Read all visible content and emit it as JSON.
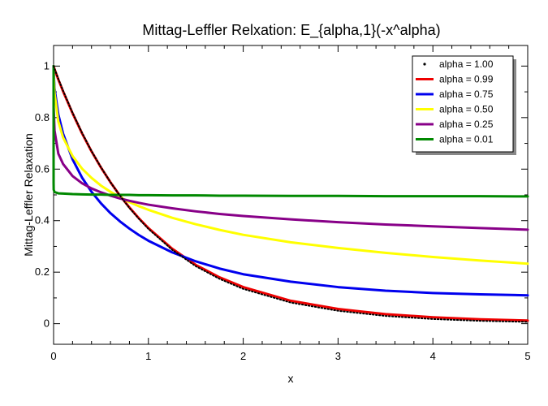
{
  "chart_data": {
    "type": "line",
    "title": "Mittag-Leffler Relxation: E_{alpha,1}(-x^alpha)",
    "xlabel": "x",
    "ylabel": "Mittag-Leffler Relaxation",
    "xlim": [
      0,
      5
    ],
    "ylim": [
      -0.08,
      1.08
    ],
    "xticks": [
      0,
      1,
      2,
      3,
      4,
      5
    ],
    "yticks": [
      0,
      0.2,
      0.4,
      0.6,
      0.8,
      1
    ],
    "ytick_labels": [
      "0",
      "0.2",
      "0.4",
      "0.6",
      "0.8",
      "1"
    ],
    "xtick_labels": [
      "0",
      "1",
      "2",
      "3",
      "4",
      "5"
    ],
    "legend_position": "top-right",
    "grid": false,
    "x": [
      0,
      0.0001,
      0.001,
      0.01,
      0.05,
      0.1,
      0.2,
      0.3,
      0.4,
      0.5,
      0.6,
      0.7,
      0.8,
      0.9,
      1,
      1.25,
      1.5,
      1.75,
      2,
      2.5,
      3,
      3.5,
      4,
      4.5,
      5
    ],
    "series": [
      {
        "name": "alpha = 1.00",
        "color": "#000000",
        "style": "dotted",
        "values": [
          1,
          1,
          0.999,
          0.99,
          0.951,
          0.905,
          0.819,
          0.741,
          0.67,
          0.607,
          0.549,
          0.497,
          0.449,
          0.407,
          0.368,
          0.287,
          0.223,
          0.174,
          0.135,
          0.082,
          0.05,
          0.03,
          0.018,
          0.011,
          0.007
        ]
      },
      {
        "name": "alpha = 0.99",
        "color": "#ee0000",
        "style": "solid",
        "values": [
          1,
          1,
          0.999,
          0.988,
          0.948,
          0.902,
          0.817,
          0.739,
          0.669,
          0.606,
          0.549,
          0.497,
          0.451,
          0.409,
          0.371,
          0.291,
          0.228,
          0.18,
          0.142,
          0.089,
          0.057,
          0.037,
          0.025,
          0.017,
          0.012
        ]
      },
      {
        "name": "alpha = 0.75",
        "color": "#0000ee",
        "style": "solid",
        "values": [
          1,
          0.992,
          0.97,
          0.914,
          0.812,
          0.738,
          0.638,
          0.567,
          0.512,
          0.467,
          0.429,
          0.397,
          0.369,
          0.344,
          0.322,
          0.277,
          0.242,
          0.214,
          0.192,
          0.163,
          0.142,
          0.128,
          0.119,
          0.114,
          0.11
        ]
      },
      {
        "name": "alpha = 0.50",
        "color": "#ffff00",
        "style": "solid",
        "values": [
          1,
          0.989,
          0.966,
          0.895,
          0.785,
          0.723,
          0.651,
          0.602,
          0.566,
          0.536,
          0.512,
          0.491,
          0.472,
          0.456,
          0.442,
          0.411,
          0.386,
          0.364,
          0.345,
          0.316,
          0.294,
          0.275,
          0.259,
          0.245,
          0.233
        ]
      },
      {
        "name": "alpha = 0.25",
        "color": "#880088",
        "style": "solid",
        "values": [
          1,
          0.91,
          0.84,
          0.75,
          0.66,
          0.62,
          0.573,
          0.545,
          0.525,
          0.51,
          0.497,
          0.486,
          0.477,
          0.469,
          0.462,
          0.448,
          0.436,
          0.426,
          0.418,
          0.405,
          0.394,
          0.385,
          0.378,
          0.371,
          0.365
        ]
      },
      {
        "name": "alpha = 0.01",
        "color": "#008800",
        "style": "solid",
        "values": [
          1,
          0.548,
          0.52,
          0.511,
          0.506,
          0.505,
          0.503,
          0.502,
          0.501,
          0.501,
          0.5,
          0.5,
          0.5,
          0.499,
          0.499,
          0.498,
          0.498,
          0.497,
          0.497,
          0.496,
          0.496,
          0.495,
          0.495,
          0.495,
          0.494
        ]
      }
    ]
  }
}
